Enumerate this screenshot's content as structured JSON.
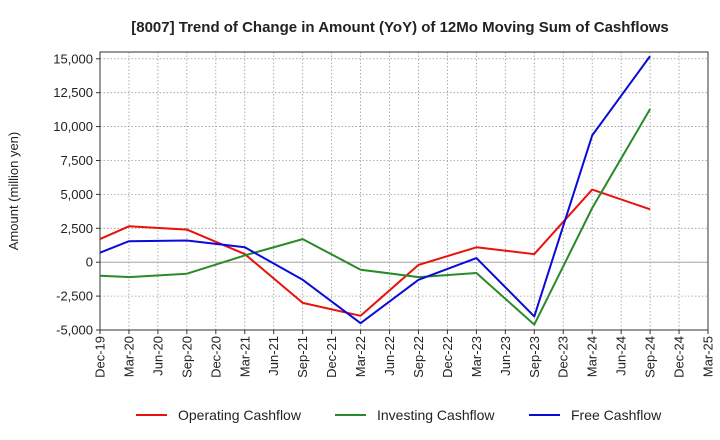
{
  "chart_data": {
    "type": "line",
    "title": "[8007]  Trend of Change in Amount (YoY) of 12Mo Moving Sum of Cashflows",
    "xlabel": "",
    "ylabel": "Amount (million yen)",
    "ylim": [
      -5000,
      15500
    ],
    "yticks": [
      -5000,
      -2500,
      0,
      2500,
      5000,
      7500,
      10000,
      12500,
      15000
    ],
    "ytick_labels": [
      "-5,000",
      "-2,500",
      "0",
      "2,500",
      "5,000",
      "7,500",
      "10,000",
      "12,500",
      "15,000"
    ],
    "categories": [
      "Dec-19",
      "Mar-20",
      "Jun-20",
      "Sep-20",
      "Dec-20",
      "Mar-21",
      "Jun-21",
      "Sep-21",
      "Dec-21",
      "Mar-22",
      "Jun-22",
      "Sep-22",
      "Dec-22",
      "Mar-23",
      "Jun-23",
      "Sep-23",
      "Dec-23",
      "Mar-24",
      "Jun-24",
      "Sep-24",
      "Dec-24",
      "Mar-25"
    ],
    "grid": true,
    "legend_position": "bottom",
    "series": [
      {
        "name": "Operating Cashflow",
        "color": "#e8120c",
        "values": [
          1700,
          2650,
          null,
          2400,
          null,
          600,
          null,
          -3000,
          null,
          -3950,
          null,
          -200,
          null,
          1100,
          null,
          600,
          null,
          5350,
          null,
          3900,
          null,
          null
        ]
      },
      {
        "name": "Investing Cashflow",
        "color": "#2a8a2a",
        "values": [
          -1000,
          -1100,
          null,
          -850,
          null,
          500,
          null,
          1700,
          null,
          -550,
          null,
          -1100,
          null,
          -800,
          null,
          -4600,
          null,
          4000,
          null,
          11300,
          null,
          null
        ]
      },
      {
        "name": "Free Cashflow",
        "color": "#0b0bd8",
        "values": [
          700,
          1550,
          null,
          1600,
          null,
          1100,
          null,
          -1300,
          null,
          -4500,
          null,
          -1300,
          null,
          300,
          null,
          -4000,
          null,
          9350,
          null,
          15200,
          null,
          null
        ]
      }
    ]
  }
}
